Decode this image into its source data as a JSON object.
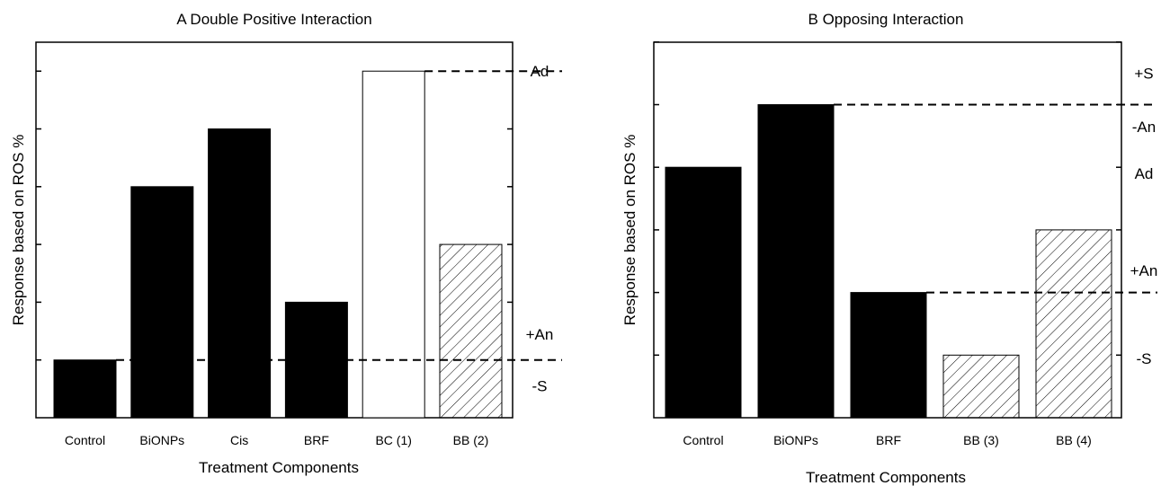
{
  "chart_data": [
    {
      "type": "bar",
      "title": "A  Double Positive Interaction",
      "xlabel": "Treatment Components",
      "ylabel": "Response based on ROS %",
      "categories": [
        "Control",
        "BiONPs",
        "Cis",
        "BRF",
        "BC (1)",
        "BB (2)"
      ],
      "values": [
        1,
        4,
        5,
        2,
        6,
        3
      ],
      "bar_styles": [
        "solid",
        "solid",
        "solid",
        "solid",
        "open",
        "hatched"
      ],
      "ylim": [
        0,
        6.2
      ],
      "reference_lines": [
        {
          "y": 6,
          "from_category": "BC (1)"
        },
        {
          "y": 1,
          "from_category": "Control"
        }
      ],
      "region_labels": [
        {
          "text": "Ad",
          "y": 6
        },
        {
          "text": "+An",
          "y": 1.45
        },
        {
          "text": "-S",
          "y": 0.55
        }
      ]
    },
    {
      "type": "bar",
      "title": "B  Opposing Interaction",
      "xlabel": "Treatment Components",
      "ylabel": "Response based on ROS %",
      "categories": [
        "Control",
        "BiONPs",
        "BRF",
        "BB (3)",
        "BB (4)"
      ],
      "values": [
        4,
        5,
        2,
        1,
        3
      ],
      "bar_styles": [
        "solid",
        "solid",
        "solid",
        "hatched",
        "hatched"
      ],
      "ylim": [
        0,
        6.2
      ],
      "reference_lines": [
        {
          "y": 5,
          "from_category": "BiONPs"
        },
        {
          "y": 2,
          "from_category": "BRF"
        }
      ],
      "region_labels": [
        {
          "text": "+S",
          "y": 5.5
        },
        {
          "text": "-An",
          "y": 4.65
        },
        {
          "text": "Ad",
          "y": 3.9
        },
        {
          "text": "+An",
          "y": 2.35
        },
        {
          "text": "-S",
          "y": 0.95
        }
      ]
    }
  ]
}
